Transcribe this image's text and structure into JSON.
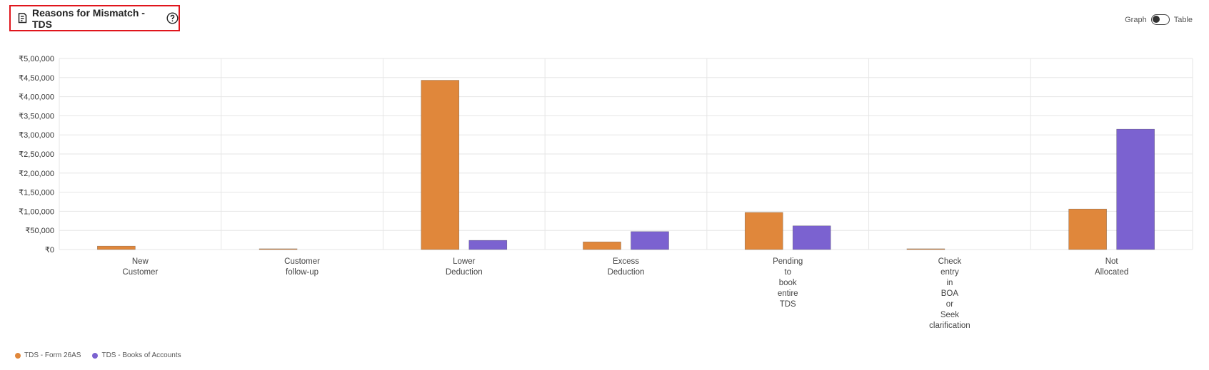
{
  "header": {
    "title": "Reasons for Mismatch - TDS",
    "title_icon": "report-icon",
    "help_icon": "help-icon"
  },
  "view_toggle": {
    "left_label": "Graph",
    "right_label": "Table",
    "selected": "Graph"
  },
  "colors": {
    "series_1": "#e0873b",
    "series_2": "#7b62d0",
    "grid": "#e6e6e6",
    "highlight_border": "#e0151c"
  },
  "chart_data": {
    "type": "bar",
    "categories": [
      [
        "New",
        "Customer"
      ],
      [
        "Customer",
        "follow-up"
      ],
      [
        "Lower",
        "Deduction"
      ],
      [
        "Excess",
        "Deduction"
      ],
      [
        "Pending",
        "to",
        "book",
        "entire",
        "TDS"
      ],
      [
        "Check",
        "entry",
        "in",
        "BOA",
        "or",
        "Seek",
        "clarification"
      ],
      [
        "Not",
        "Allocated"
      ]
    ],
    "series": [
      {
        "name": "TDS - Form 26AS",
        "values": [
          9000,
          2000,
          443000,
          20000,
          97000,
          2000,
          106000
        ]
      },
      {
        "name": "TDS - Books of Accounts",
        "values": [
          0,
          0,
          24000,
          47000,
          62000,
          0,
          315000
        ]
      }
    ],
    "ylim": [
      0,
      500000
    ],
    "yticks": [
      {
        "value": 0,
        "label": "₹0"
      },
      {
        "value": 50000,
        "label": "₹50,000"
      },
      {
        "value": 100000,
        "label": "₹1,00,000"
      },
      {
        "value": 150000,
        "label": "₹1,50,000"
      },
      {
        "value": 200000,
        "label": "₹2,00,000"
      },
      {
        "value": 250000,
        "label": "₹2,50,000"
      },
      {
        "value": 300000,
        "label": "₹3,00,000"
      },
      {
        "value": 350000,
        "label": "₹3,50,000"
      },
      {
        "value": 400000,
        "label": "₹4,00,000"
      },
      {
        "value": 450000,
        "label": "₹4,50,000"
      },
      {
        "value": 500000,
        "label": "₹5,00,000"
      }
    ],
    "grid": true,
    "legend_position": "bottom-left"
  }
}
